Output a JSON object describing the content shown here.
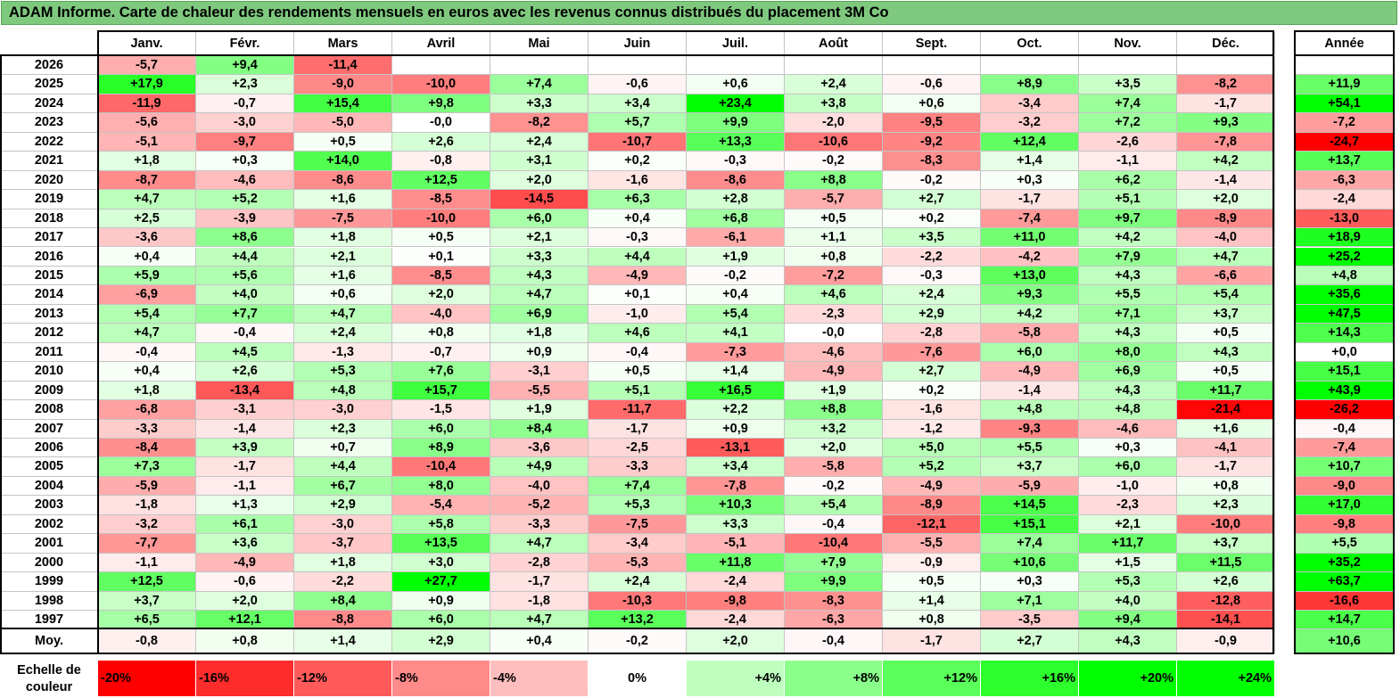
{
  "title": "ADAM Informe. Carte de chaleur des rendements mensuels en euros avec les revenus connus distribués du placement 3M Co",
  "chart_data": {
    "type": "heatmap",
    "title": "ADAM Informe. Carte de chaleur des rendements mensuels en euros avec les revenus connus distribués du placement 3M Co",
    "months": [
      "Janv.",
      "Févr.",
      "Mars",
      "Avril",
      "Mai",
      "Juin",
      "Juil.",
      "Août",
      "Sept.",
      "Oct.",
      "Nov.",
      "Déc."
    ],
    "year_header": "Année",
    "rows": [
      {
        "label": "2026",
        "values": [
          "-5,7",
          "+9,4",
          "-11,4",
          "",
          "",
          "",
          "",
          "",
          "",
          "",
          "",
          ""
        ],
        "year": ""
      },
      {
        "label": "2025",
        "values": [
          "+17,9",
          "+2,3",
          "-9,0",
          "-10,0",
          "+7,4",
          "-0,6",
          "+0,6",
          "+2,4",
          "-0,6",
          "+8,9",
          "+3,5",
          "-8,2"
        ],
        "year": "+11,9"
      },
      {
        "label": "2024",
        "values": [
          "-11,9",
          "-0,7",
          "+15,4",
          "+9,8",
          "+3,3",
          "+3,4",
          "+23,4",
          "+3,8",
          "+0,6",
          "-3,4",
          "+7,4",
          "-1,7"
        ],
        "year": "+54,1"
      },
      {
        "label": "2023",
        "values": [
          "-5,6",
          "-3,0",
          "-5,0",
          "-0,0",
          "-8,2",
          "+5,7",
          "+9,9",
          "-2,0",
          "-9,5",
          "-3,2",
          "+7,2",
          "+9,3"
        ],
        "year": "-7,2"
      },
      {
        "label": "2022",
        "values": [
          "-5,1",
          "-9,7",
          "+0,5",
          "+2,6",
          "+2,4",
          "-10,7",
          "+13,3",
          "-10,6",
          "-9,2",
          "+12,4",
          "-2,6",
          "-7,8"
        ],
        "year": "-24,7"
      },
      {
        "label": "2021",
        "values": [
          "+1,8",
          "+0,3",
          "+14,0",
          "-0,8",
          "+3,1",
          "+0,2",
          "-0,3",
          "-0,2",
          "-8,3",
          "+1,4",
          "-1,1",
          "+4,2"
        ],
        "year": "+13,7"
      },
      {
        "label": "2020",
        "values": [
          "-8,7",
          "-4,6",
          "-8,6",
          "+12,5",
          "+2,0",
          "-1,6",
          "-8,6",
          "+8,8",
          "-0,2",
          "+0,3",
          "+6,2",
          "-1,4"
        ],
        "year": "-6,3"
      },
      {
        "label": "2019",
        "values": [
          "+4,7",
          "+5,2",
          "+1,6",
          "-8,5",
          "-14,5",
          "+6,3",
          "+2,8",
          "-5,7",
          "+2,7",
          "-1,7",
          "+5,1",
          "+2,0"
        ],
        "year": "-2,4"
      },
      {
        "label": "2018",
        "values": [
          "+2,5",
          "-3,9",
          "-7,5",
          "-10,0",
          "+6,0",
          "+0,4",
          "+6,8",
          "+0,5",
          "+0,2",
          "-7,4",
          "+9,7",
          "-8,9"
        ],
        "year": "-13,0"
      },
      {
        "label": "2017",
        "values": [
          "-3,6",
          "+8,6",
          "+1,8",
          "+0,5",
          "+2,1",
          "-0,3",
          "-6,1",
          "+1,1",
          "+3,5",
          "+11,0",
          "+4,2",
          "-4,0"
        ],
        "year": "+18,9"
      },
      {
        "label": "2016",
        "values": [
          "+0,4",
          "+4,4",
          "+2,1",
          "+0,1",
          "+3,3",
          "+4,4",
          "+1,9",
          "+0,8",
          "-2,2",
          "-4,2",
          "+7,9",
          "+4,7"
        ],
        "year": "+25,2"
      },
      {
        "label": "2015",
        "values": [
          "+5,9",
          "+5,6",
          "+1,6",
          "-8,5",
          "+4,3",
          "-4,9",
          "-0,2",
          "-7,2",
          "-0,3",
          "+13,0",
          "+4,3",
          "-6,6"
        ],
        "year": "+4,8"
      },
      {
        "label": "2014",
        "values": [
          "-6,9",
          "+4,0",
          "+0,6",
          "+2,0",
          "+4,7",
          "+0,1",
          "+0,4",
          "+4,6",
          "+2,4",
          "+9,3",
          "+5,5",
          "+5,4"
        ],
        "year": "+35,6"
      },
      {
        "label": "2013",
        "values": [
          "+5,4",
          "+7,7",
          "+4,7",
          "-4,0",
          "+6,9",
          "-1,0",
          "+5,4",
          "-2,3",
          "+2,9",
          "+4,2",
          "+7,1",
          "+3,7"
        ],
        "year": "+47,5"
      },
      {
        "label": "2012",
        "values": [
          "+4,7",
          "-0,4",
          "+2,4",
          "+0,8",
          "+1,8",
          "+4,6",
          "+4,1",
          "-0,0",
          "-2,8",
          "-5,8",
          "+4,3",
          "+0,5"
        ],
        "year": "+14,3"
      },
      {
        "label": "2011",
        "values": [
          "-0,4",
          "+4,5",
          "-1,3",
          "-0,7",
          "+0,9",
          "-0,4",
          "-7,3",
          "-4,6",
          "-7,6",
          "+6,0",
          "+8,0",
          "+4,3"
        ],
        "year": "+0,0"
      },
      {
        "label": "2010",
        "values": [
          "+0,4",
          "+2,6",
          "+5,3",
          "+7,6",
          "-3,1",
          "+0,5",
          "+1,4",
          "-4,9",
          "+2,7",
          "-4,9",
          "+6,9",
          "+0,5"
        ],
        "year": "+15,1"
      },
      {
        "label": "2009",
        "values": [
          "+1,8",
          "-13,4",
          "+4,8",
          "+15,7",
          "-5,5",
          "+5,1",
          "+16,5",
          "+1,9",
          "+0,2",
          "-1,4",
          "+4,3",
          "+11,7"
        ],
        "year": "+43,9"
      },
      {
        "label": "2008",
        "values": [
          "-6,8",
          "-3,1",
          "-3,0",
          "-1,5",
          "+1,9",
          "-11,7",
          "+2,2",
          "+8,8",
          "-1,6",
          "+4,8",
          "+4,8",
          "-21,4"
        ],
        "year": "-26,2"
      },
      {
        "label": "2007",
        "values": [
          "-3,3",
          "-1,4",
          "+2,3",
          "+6,0",
          "+8,4",
          "-1,7",
          "+0,9",
          "+3,2",
          "-1,2",
          "-9,3",
          "-4,6",
          "+1,6"
        ],
        "year": "-0,4"
      },
      {
        "label": "2006",
        "values": [
          "-8,4",
          "+3,9",
          "+0,7",
          "+8,9",
          "-3,6",
          "-2,5",
          "-13,1",
          "+2,0",
          "+5,0",
          "+5,5",
          "+0,3",
          "-4,1"
        ],
        "year": "-7,4"
      },
      {
        "label": "2005",
        "values": [
          "+7,3",
          "-1,7",
          "+4,4",
          "-10,4",
          "+4,9",
          "-3,3",
          "+3,4",
          "-5,8",
          "+5,2",
          "+3,7",
          "+6,0",
          "-1,7"
        ],
        "year": "+10,7"
      },
      {
        "label": "2004",
        "values": [
          "-5,9",
          "-1,1",
          "+6,7",
          "+8,0",
          "-4,0",
          "+7,4",
          "-7,8",
          "-0,2",
          "-4,9",
          "-5,9",
          "-1,0",
          "+0,8"
        ],
        "year": "-9,0"
      },
      {
        "label": "2003",
        "values": [
          "-1,8",
          "+1,3",
          "+2,9",
          "-5,4",
          "-5,2",
          "+5,3",
          "+10,3",
          "+5,4",
          "-8,9",
          "+14,5",
          "-2,3",
          "+2,3"
        ],
        "year": "+17,0"
      },
      {
        "label": "2002",
        "values": [
          "-3,2",
          "+6,1",
          "-3,0",
          "+5,8",
          "-3,3",
          "-7,5",
          "+3,3",
          "-0,4",
          "-12,1",
          "+15,1",
          "+2,1",
          "-10,0"
        ],
        "year": "-9,8"
      },
      {
        "label": "2001",
        "values": [
          "-7,7",
          "+3,6",
          "-3,7",
          "+13,5",
          "+4,7",
          "-3,4",
          "-5,1",
          "-10,4",
          "-5,5",
          "+7,4",
          "+11,7",
          "+3,7"
        ],
        "year": "+5,5"
      },
      {
        "label": "2000",
        "values": [
          "-1,1",
          "-4,9",
          "+1,8",
          "+3,0",
          "-2,8",
          "-5,3",
          "+11,8",
          "+7,9",
          "-0,9",
          "+10,6",
          "+1,5",
          "+11,5"
        ],
        "year": "+35,2"
      },
      {
        "label": "1999",
        "values": [
          "+12,5",
          "-0,6",
          "-2,2",
          "+27,7",
          "-1,7",
          "+2,4",
          "-2,4",
          "+9,9",
          "+0,5",
          "+0,3",
          "+5,3",
          "+2,6"
        ],
        "year": "+63,7"
      },
      {
        "label": "1998",
        "values": [
          "+3,7",
          "+2,0",
          "+8,4",
          "+0,9",
          "-1,8",
          "-10,3",
          "-9,8",
          "-8,3",
          "+1,4",
          "+7,1",
          "+4,0",
          "-12,8"
        ],
        "year": "-16,6"
      },
      {
        "label": "1997",
        "values": [
          "+6,5",
          "+12,1",
          "-8,8",
          "+6,0",
          "+4,7",
          "+13,2",
          "-2,4",
          "-6,3",
          "+0,8",
          "-3,5",
          "+9,4",
          "-14,1"
        ],
        "year": "+14,7"
      }
    ],
    "average": {
      "label": "Moy.",
      "values": [
        "-0,8",
        "+0,8",
        "+1,4",
        "+2,9",
        "+0,4",
        "-0,2",
        "+2,0",
        "-0,4",
        "-1,7",
        "+2,7",
        "+4,3",
        "-0,9"
      ],
      "year": "+10,6"
    },
    "color_scale": {
      "label": "Echelle de couleur",
      "stops": [
        "-20%",
        "-16%",
        "-12%",
        "-8%",
        "-4%",
        "0%",
        "+4%",
        "+8%",
        "+12%",
        "+16%",
        "+20%",
        "+24%"
      ],
      "colors": {
        "negative": "#ff0000",
        "neutral": "#ffffff",
        "positive": "#00ff00"
      }
    }
  }
}
